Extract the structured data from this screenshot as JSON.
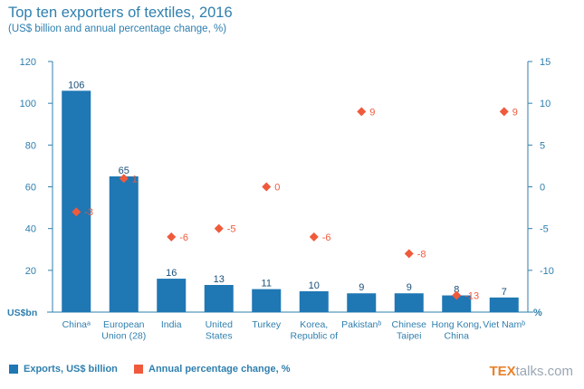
{
  "title": "Top ten exporters of textiles, 2016",
  "subtitle": "(US$ billion and annual percentage change, %)",
  "chart_data": {
    "type": "bar",
    "categories": [
      [
        "Chinaᵃ"
      ],
      [
        "European",
        "Union (28)"
      ],
      [
        "India"
      ],
      [
        "United",
        "States"
      ],
      [
        "Turkey"
      ],
      [
        "Korea,",
        "Republic of"
      ],
      [
        "Pakistanᵇ"
      ],
      [
        "Chinese",
        "Taipei"
      ],
      [
        "Hong Kong,",
        "China"
      ],
      [
        "Viet Namᵇ"
      ]
    ],
    "series": [
      {
        "name": "Exports, US$ billion",
        "type": "bar",
        "axis": "left",
        "color": "#1f77b4",
        "values": [
          106,
          65,
          16,
          13,
          11,
          10,
          9,
          9,
          8,
          7
        ],
        "labels": [
          "106",
          "65",
          "16",
          "13",
          "11",
          "10",
          "9",
          "9",
          "8",
          "7"
        ]
      },
      {
        "name": "Annual percentage change, %",
        "type": "scatter",
        "axis": "right",
        "color": "#f05a3c",
        "marker": "diamond",
        "values": [
          -3,
          1,
          -6,
          -5,
          0,
          -6,
          9,
          -8,
          -13,
          9
        ],
        "labels": [
          "-3",
          "1",
          "-6",
          "-5",
          "0",
          "-6",
          "9",
          "-8",
          "-13",
          "9"
        ]
      }
    ],
    "y_left": {
      "label": "US$bn",
      "min": 0,
      "max": 120,
      "ticks": [
        "20",
        "40",
        "60",
        "80",
        "100",
        "120"
      ]
    },
    "y_right": {
      "label": "%",
      "min": -15,
      "max": 15,
      "ticks": [
        "-10",
        "-5",
        "0",
        "5",
        "10",
        "15"
      ]
    },
    "grid": false,
    "legend_position": "bottom-left"
  },
  "legend": {
    "exports_label": "Exports, US$ billion",
    "change_label": "Annual percentage change, %"
  },
  "brand": {
    "part1": "TEX",
    "part2": "talks.com"
  },
  "colors": {
    "bar": "#1f77b4",
    "marker": "#f05a3c",
    "axis": "#2f7fae",
    "text": "#2f7fae"
  }
}
